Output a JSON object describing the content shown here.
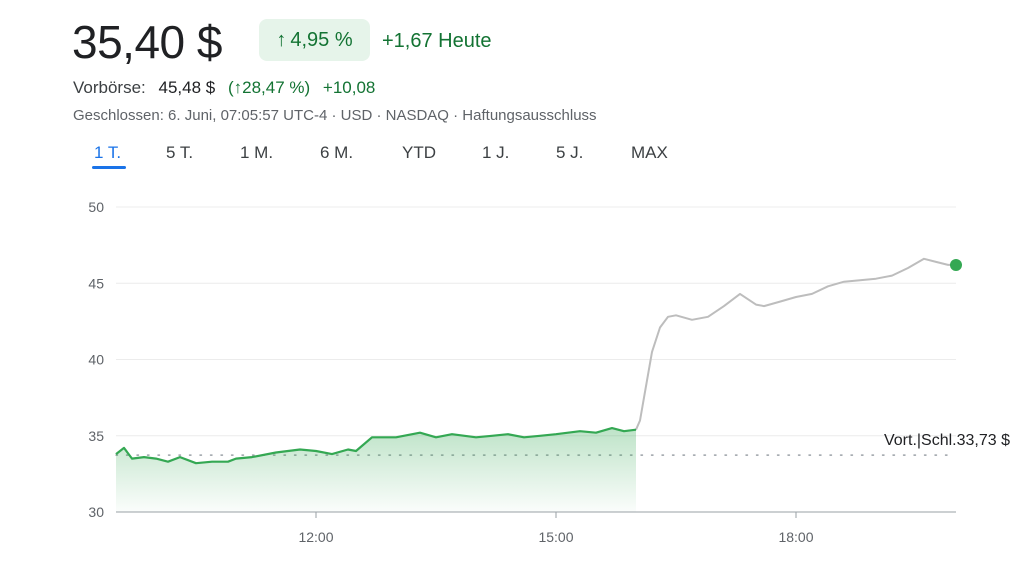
{
  "quote": {
    "price": "35,40 $",
    "change_pct": "4,95 %",
    "change_abs": "+1,67 Heute",
    "premarket_label": "Vorbörse:",
    "premarket_price": "45,48 $",
    "premarket_pct": "(↑28,47 %)",
    "premarket_abs": "+10,08",
    "meta": "Geschlossen: 6. Juni, 07:05:57 UTC-4 · USD · NASDAQ · Haftungsausschluss"
  },
  "tabs": [
    "1 T.",
    "5 T.",
    "1 M.",
    "6 M.",
    "YTD",
    "1 J.",
    "5 J.",
    "MAX"
  ],
  "active_tab": "1 T.",
  "colors": {
    "up": "#137333",
    "up_line": "#34a853",
    "up_bg": "#e6f4ea",
    "extended_line": "#bdbdbd",
    "accent": "#1a73e8",
    "grid": "#ececec"
  },
  "chart_data": {
    "type": "line",
    "ylim": [
      30,
      50
    ],
    "yticks": [
      30,
      35,
      40,
      45,
      50
    ],
    "xlim": [
      9.5,
      20.0
    ],
    "xticks": [
      12,
      15,
      18
    ],
    "xtick_labels": [
      "12:00",
      "15:00",
      "18:00"
    ],
    "reference_label": "Vort.|Schl.33,73 $",
    "reference_value": 33.73,
    "series": [
      {
        "session": "regular",
        "x": [
          9.5,
          9.6,
          9.7,
          9.85,
          10.0,
          10.15,
          10.3,
          10.5,
          10.7,
          10.9,
          11.0,
          11.2,
          11.5,
          11.8,
          12.0,
          12.2,
          12.4,
          12.5,
          12.7,
          13.0,
          13.3,
          13.5,
          13.7,
          14.0,
          14.2,
          14.4,
          14.6,
          14.8,
          15.0,
          15.3,
          15.5,
          15.7,
          15.85,
          16.0
        ],
        "y": [
          33.8,
          34.2,
          33.5,
          33.6,
          33.5,
          33.3,
          33.6,
          33.2,
          33.3,
          33.3,
          33.5,
          33.6,
          33.9,
          34.1,
          34.0,
          33.8,
          34.1,
          34.0,
          34.9,
          34.9,
          35.2,
          34.9,
          35.1,
          34.9,
          35.0,
          35.1,
          34.9,
          35.0,
          35.1,
          35.3,
          35.2,
          35.5,
          35.3,
          35.4
        ]
      },
      {
        "session": "extended",
        "x": [
          16.0,
          16.05,
          16.1,
          16.2,
          16.3,
          16.4,
          16.5,
          16.7,
          16.9,
          17.1,
          17.3,
          17.5,
          17.6,
          17.8,
          18.0,
          18.2,
          18.4,
          18.6,
          18.8,
          19.0,
          19.2,
          19.4,
          19.6,
          19.75,
          19.9,
          20.0
        ],
        "y": [
          35.4,
          36.0,
          37.5,
          40.5,
          42.1,
          42.8,
          42.9,
          42.6,
          42.8,
          43.5,
          44.3,
          43.6,
          43.5,
          43.8,
          44.1,
          44.3,
          44.8,
          45.1,
          45.2,
          45.3,
          45.5,
          46.0,
          46.6,
          46.4,
          46.2,
          46.2
        ]
      }
    ]
  }
}
